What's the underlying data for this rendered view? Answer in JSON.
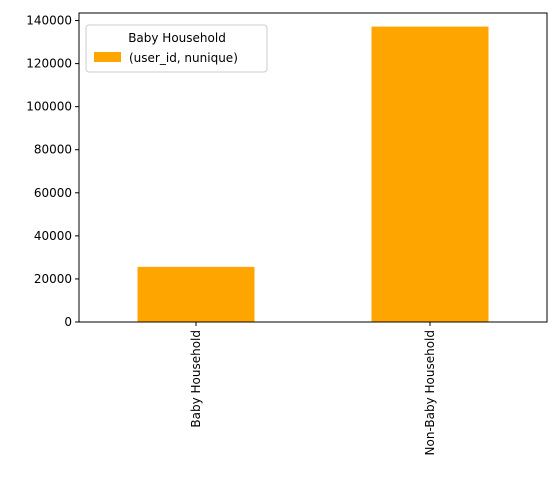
{
  "chart_data": {
    "type": "bar",
    "title": "",
    "xlabel": "",
    "ylabel": "",
    "categories": [
      "Baby Household",
      "Non-Baby Household"
    ],
    "series": [
      {
        "name": "(user_id, nunique)",
        "values": [
          25600,
          137200
        ],
        "color": "#FFA500"
      }
    ],
    "ylim": [
      0,
      143500
    ],
    "yticks": [
      0,
      20000,
      40000,
      60000,
      80000,
      100000,
      120000,
      140000
    ],
    "ytick_labels": [
      "0",
      "20000",
      "40000",
      "60000",
      "80000",
      "100000",
      "120000",
      "140000"
    ],
    "legend": {
      "title": "Baby Household",
      "placement": "top-left"
    },
    "grid": false,
    "xtick_rotation": "vertical"
  }
}
